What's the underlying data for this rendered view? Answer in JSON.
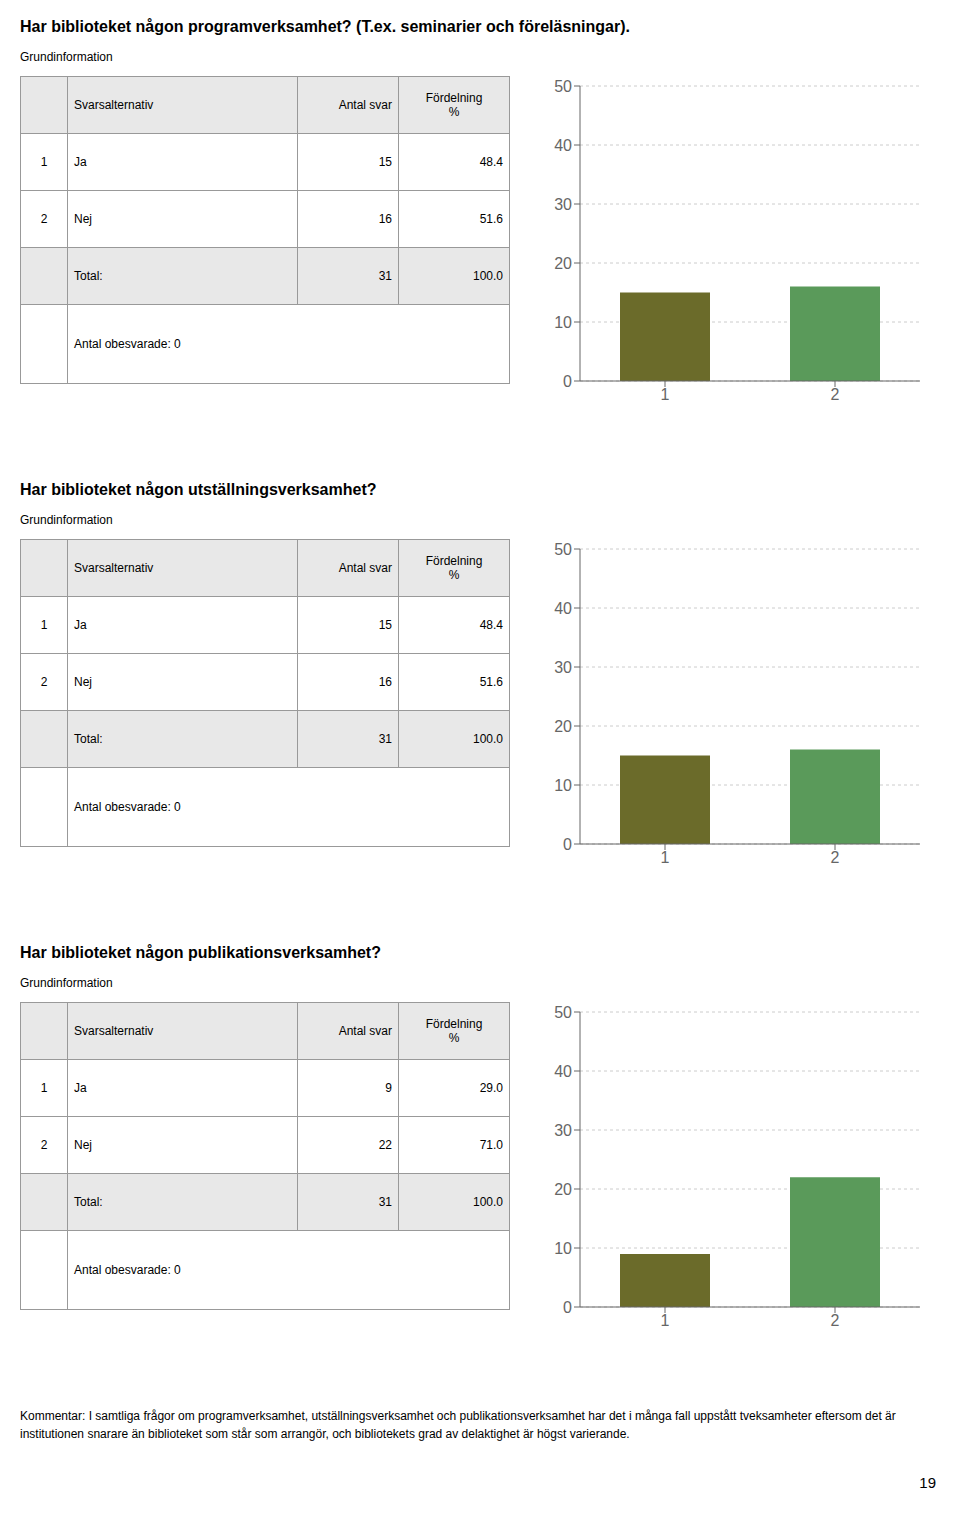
{
  "chart_data": [
    {
      "type": "bar",
      "title": "Har biblioteket någon programverksamhet? (T.ex. seminarier och föreläsningar).",
      "subtitle": "Grundinformation",
      "categories": [
        "1",
        "2"
      ],
      "values": [
        15,
        16
      ],
      "colors": [
        "#6b6b2a",
        "#5a9a5a"
      ],
      "ylim": [
        0,
        50
      ],
      "yticks": [
        0,
        10,
        20,
        30,
        40,
        50
      ],
      "grid": true,
      "table": {
        "columns": [
          "Svarsalternativ",
          "Antal svar",
          "Fördelning\n%"
        ],
        "rows": [
          [
            "1",
            "Ja",
            "15",
            "48.4"
          ],
          [
            "2",
            "Nej",
            "16",
            "51.6"
          ],
          [
            null,
            "Total:",
            "31",
            "100.0"
          ]
        ],
        "note": "Antal obesvarade: 0"
      }
    },
    {
      "type": "bar",
      "title": "Har biblioteket någon utställningsverksamhet?",
      "subtitle": "Grundinformation",
      "categories": [
        "1",
        "2"
      ],
      "values": [
        15,
        16
      ],
      "colors": [
        "#6b6b2a",
        "#5a9a5a"
      ],
      "ylim": [
        0,
        50
      ],
      "yticks": [
        0,
        10,
        20,
        30,
        40,
        50
      ],
      "grid": true,
      "table": {
        "columns": [
          "Svarsalternativ",
          "Antal svar",
          "Fördelning\n%"
        ],
        "rows": [
          [
            "1",
            "Ja",
            "15",
            "48.4"
          ],
          [
            "2",
            "Nej",
            "16",
            "51.6"
          ],
          [
            null,
            "Total:",
            "31",
            "100.0"
          ]
        ],
        "note": "Antal obesvarade: 0"
      }
    },
    {
      "type": "bar",
      "title": "Har biblioteket någon publikationsverksamhet?",
      "subtitle": "Grundinformation",
      "categories": [
        "1",
        "2"
      ],
      "values": [
        9,
        22
      ],
      "colors": [
        "#6b6b2a",
        "#5a9a5a"
      ],
      "ylim": [
        0,
        50
      ],
      "yticks": [
        0,
        10,
        20,
        30,
        40,
        50
      ],
      "grid": true,
      "table": {
        "columns": [
          "Svarsalternativ",
          "Antal svar",
          "Fördelning\n%"
        ],
        "rows": [
          [
            "1",
            "Ja",
            "9",
            "29.0"
          ],
          [
            "2",
            "Nej",
            "22",
            "71.0"
          ],
          [
            null,
            "Total:",
            "31",
            "100.0"
          ]
        ],
        "note": "Antal obesvarade: 0"
      }
    }
  ],
  "footer_text": "Kommentar: I samtliga frågor om programverksamhet, utställningsverksamhet och publikationsverksamhet har det i många fall uppstått tveksamheter eftersom det är institutionen snarare än biblioteket som står som arrangör, och bibliotekets grad av delaktighet är högst varierande.",
  "page_number": "19"
}
